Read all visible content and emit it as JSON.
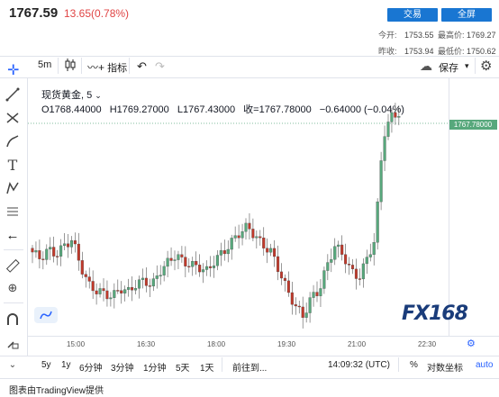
{
  "header": {
    "price": "1767.59",
    "change": "13.65(0.78%)",
    "trade_button": "交易",
    "fullscreen_button": "全屏",
    "today_open_label": "今开:",
    "today_open_value": "1753.55",
    "high_label": "最高价:",
    "high_value": "1769.27",
    "prev_close_label": "昨收:",
    "prev_close_value": "1753.94",
    "low_label": "最低价:",
    "low_value": "1750.62"
  },
  "toolbar": {
    "interval": "5m",
    "indicators": "指标",
    "save": "保存"
  },
  "legend": {
    "symbol": "现货黄金, 5",
    "open": "O1768.44000",
    "high": "H1769.27000",
    "low": "L1767.43000",
    "close": "收=1767.78000",
    "change": "−0.64000 (−0.04%)"
  },
  "price_tag": "1767.78000",
  "time_axis": [
    "15:00",
    "16:30",
    "18:00",
    "19:30",
    "21:00",
    "22:30"
  ],
  "bottom_bar": {
    "ranges": [
      "5y",
      "1y",
      "6分钟",
      "3分钟",
      "1分钟",
      "5天",
      "1天"
    ],
    "goto": "前往到...",
    "clock": "14:09:32 (UTC)",
    "percent": "%",
    "log": "对数坐标",
    "auto": "auto"
  },
  "footer": "图表由TradingView提供",
  "logo": "FX168",
  "colors": {
    "up": "#57a87c",
    "down": "#c0392b",
    "accent": "#1976d2"
  },
  "chart_data": {
    "type": "candlestick",
    "symbol": "现货黄金",
    "interval": "5m",
    "x_ticks": [
      "15:00",
      "16:30",
      "18:00",
      "19:30",
      "21:00",
      "22:30"
    ],
    "last_price": 1767.78,
    "close_series_approx": [
      1757.0,
      1756.5,
      1757.2,
      1756.8,
      1757.5,
      1758.0,
      1756.0,
      1754.5,
      1754.0,
      1753.8,
      1753.5,
      1754.2,
      1753.9,
      1754.5,
      1754.8,
      1754.4,
      1755.5,
      1756.2,
      1756.8,
      1756.2,
      1756.0,
      1755.8,
      1755.5,
      1756.5,
      1757.0,
      1757.8,
      1758.5,
      1759.0,
      1758.2,
      1757.5,
      1757.0,
      1755.5,
      1754.0,
      1752.8,
      1752.0,
      1753.5,
      1754.0,
      1756.0,
      1757.5,
      1756.8,
      1755.5,
      1755.0,
      1756.5,
      1758.0,
      1766.0,
      1767.5,
      1767.8
    ]
  }
}
